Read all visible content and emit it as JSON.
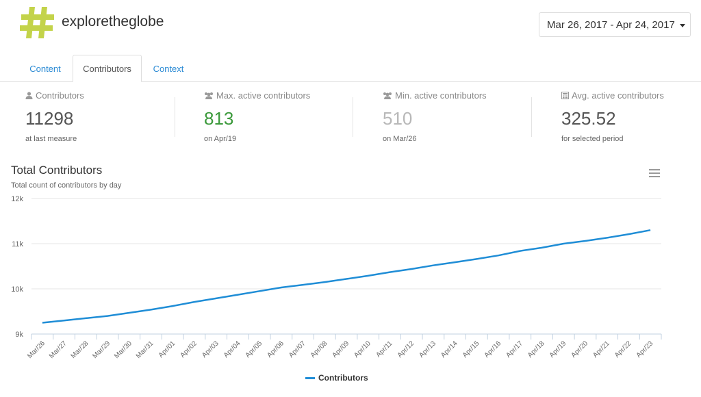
{
  "header": {
    "brand": "exploretheglobe",
    "logo_symbol": "#",
    "logo_color": "#c3d34a",
    "date_range": "Mar 26, 2017 - Apr 24, 2017"
  },
  "tabs": [
    {
      "label": "Content",
      "active": false
    },
    {
      "label": "Contributors",
      "active": true
    },
    {
      "label": "Context",
      "active": false
    }
  ],
  "stats": [
    {
      "icon": "user-icon",
      "label": "Contributors",
      "value": "11298",
      "sub": "at last measure",
      "color": "#555555"
    },
    {
      "icon": "users-icon",
      "label": "Max. active contributors",
      "value": "813",
      "sub": "on Apr/19",
      "color": "#3c9a3c"
    },
    {
      "icon": "users-icon",
      "label": "Min. active contributors",
      "value": "510",
      "sub": "on Mar/26",
      "color": "#b8b8b8"
    },
    {
      "icon": "calculator-icon",
      "label": "Avg. active contributors",
      "value": "325.52",
      "sub": "for selected period",
      "color": "#555555"
    }
  ],
  "chart_data": {
    "type": "line",
    "title": "Total Contributors",
    "subtitle": "Total count of contributors by day",
    "xlabel": "",
    "ylabel": "",
    "ylim": [
      9000,
      12000
    ],
    "yticks": [
      {
        "value": 9000,
        "label": "9k"
      },
      {
        "value": 10000,
        "label": "10k"
      },
      {
        "value": 11000,
        "label": "11k"
      },
      {
        "value": 12000,
        "label": "12k"
      }
    ],
    "grid": true,
    "legend": "bottom-center",
    "categories": [
      "Mar/26",
      "Mar/27",
      "Mar/28",
      "Mar/29",
      "Mar/30",
      "Mar/31",
      "Apr/01",
      "Apr/02",
      "Apr/03",
      "Apr/04",
      "Apr/05",
      "Apr/06",
      "Apr/07",
      "Apr/08",
      "Apr/09",
      "Apr/10",
      "Apr/11",
      "Apr/12",
      "Apr/13",
      "Apr/14",
      "Apr/15",
      "Apr/16",
      "Apr/17",
      "Apr/18",
      "Apr/19",
      "Apr/20",
      "Apr/21",
      "Apr/22",
      "Apr/23"
    ],
    "series": [
      {
        "name": "Contributors",
        "color": "#1f8dd6",
        "values": [
          9250,
          9300,
          9350,
          9400,
          9470,
          9540,
          9620,
          9710,
          9790,
          9870,
          9950,
          10030,
          10090,
          10150,
          10220,
          10290,
          10370,
          10440,
          10520,
          10590,
          10660,
          10740,
          10840,
          10910,
          11000,
          11060,
          11130,
          11210,
          11300
        ]
      }
    ]
  },
  "chart_menu_icon": "hamburger-menu-icon"
}
